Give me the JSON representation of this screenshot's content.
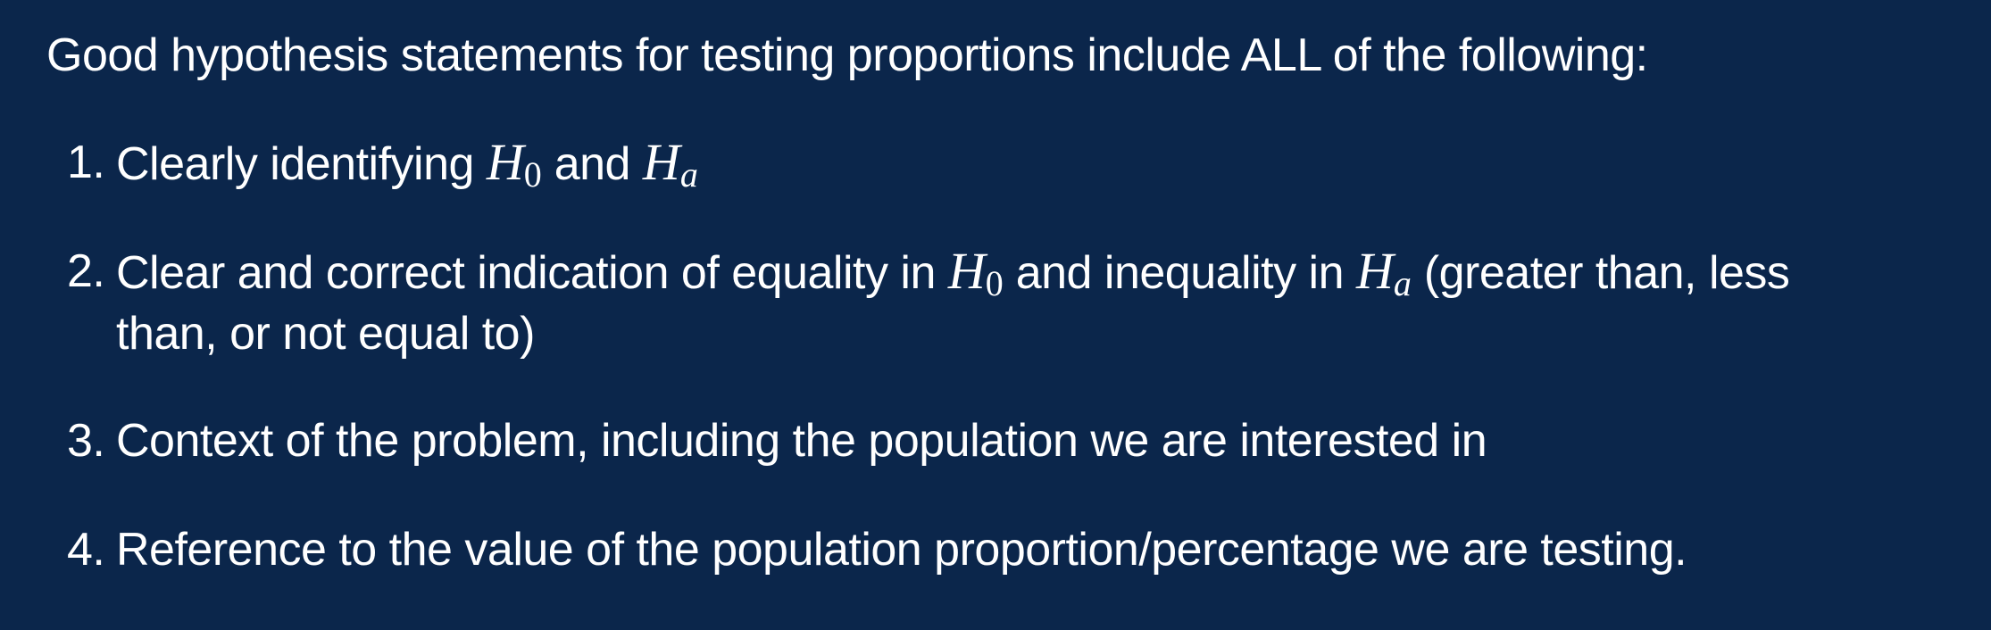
{
  "slide": {
    "background_color": "#0b264b",
    "text_color": "#ffffff",
    "intro": "Good hypothesis statements for testing proportions include ALL of the following:",
    "items": [
      {
        "number": "1.",
        "parts": {
          "a": "Clearly identifying ",
          "h0_symbol": "H",
          "h0_sub": "0",
          "b": " and ",
          "ha_symbol": "H",
          "ha_sub": "a"
        }
      },
      {
        "number": "2.",
        "parts": {
          "a": "Clear and correct indication of equality in ",
          "h0_symbol": "H",
          "h0_sub": "0",
          "b": " and inequality in ",
          "ha_symbol": "H",
          "ha_sub": "a",
          "c": " (greater than, less",
          "d": "than, or not equal to)"
        }
      },
      {
        "number": "3.",
        "text": "Context of the problem, including the population we are interested in"
      },
      {
        "number": "4.",
        "text": "Reference to the value of the population proportion/percentage we are testing."
      }
    ]
  }
}
